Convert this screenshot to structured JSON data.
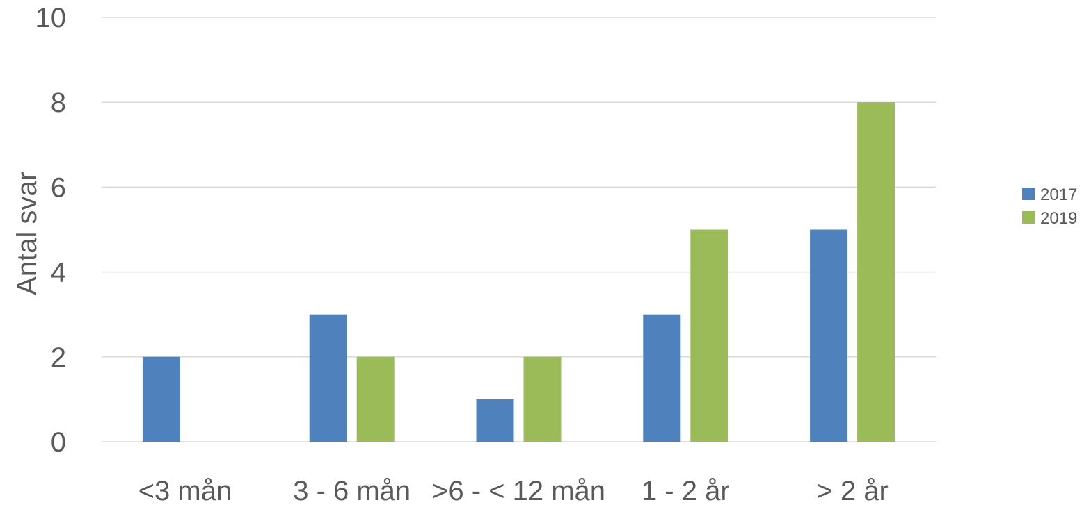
{
  "chart_data": {
    "type": "bar",
    "categories": [
      "<3 mån",
      "3 - 6 mån",
      ">6 - < 12 mån",
      "1 - 2 år",
      "> 2 år"
    ],
    "series": [
      {
        "name": "2017",
        "values": [
          2,
          3,
          1,
          3,
          5
        ],
        "color": "#4f81bd"
      },
      {
        "name": "2019",
        "values": [
          0,
          2,
          2,
          5,
          8
        ],
        "color": "#9bbb59"
      }
    ],
    "ylabel": "Antal svar",
    "ylim": [
      0,
      10
    ],
    "yticks": [
      0,
      2,
      4,
      6,
      8,
      10
    ],
    "grid": true,
    "legend_position": "right"
  }
}
